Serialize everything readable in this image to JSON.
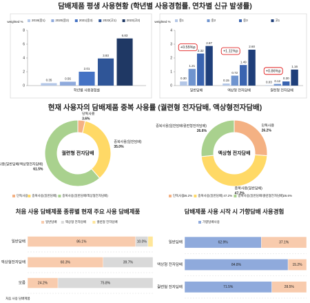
{
  "headings": [
    "담배제품 평생 사용현황 (학년별 사용경험률, 연차별 신규 발생률)",
    "현재 사용자의 담배제품 중복 사용률 (궐련형 전자담배, 액상형전자담배)",
    "처음 사용 담배제품 종류별 현재 주요 사용 담배제품",
    "담배제품 사용 시작 시 가향담배 사용경험"
  ],
  "chart_data": [
    {
      "type": "bar",
      "ylabel": "weighted %",
      "categories": [
        "학년별 사용경험률"
      ],
      "ylim": [
        0,
        8
      ],
      "yticks": [
        0,
        2,
        4,
        6,
        8
      ],
      "series": [
        {
          "name": "2019(중1)",
          "color": "#b4c7e7",
          "values": [
            0.35
          ]
        },
        {
          "name": "2020(중2)",
          "color": "#8faadc",
          "values": [
            0.56
          ]
        },
        {
          "name": "2021(중3)",
          "color": "#4472c4",
          "values": [
            2.01
          ]
        },
        {
          "name": "2022(고1)",
          "color": "#2f5597",
          "values": [
            3.93
          ]
        },
        {
          "name": "2023(고2)",
          "color": "#1f3864",
          "values": [
            6.83
          ]
        }
      ]
    },
    {
      "type": "bar",
      "ylabel": "weighted %",
      "categories": [
        "일반담배",
        "액상형 전자담배",
        "궐련형 전자담배"
      ],
      "ylim": [
        0,
        4
      ],
      "yticks": [
        0,
        1,
        2,
        3,
        4
      ],
      "annotations": [
        "+0.55%p",
        "+1.11%p",
        "+0.86%p"
      ],
      "series": [
        {
          "name": "중1",
          "color": "#b4c7e7",
          "values": [
            0.3,
            0.15,
            0.03
          ],
          "value_labels": [
            "0.30",
            "0.15",
            "0.03"
          ]
        },
        {
          "name": "중2",
          "color": "#6f94cf",
          "values": [
            1.21,
            0.72,
            0.12
          ],
          "value_labels": [
            "1.21",
            "0.72",
            "0.12"
          ]
        },
        {
          "name": "중3",
          "color": "#3a64b0",
          "values": [
            2.32,
            1.49,
            0.3
          ],
          "value_labels": [
            "2.32",
            "1.49",
            "0.30"
          ]
        },
        {
          "name": "고1",
          "color": "#1f3f7a",
          "values": [
            2.87,
            2.6,
            1.16
          ],
          "value_labels": [
            "2.87",
            "2.60",
            "1.16"
          ]
        }
      ]
    },
    {
      "type": "pie",
      "center_label": "궐련형 전자담배",
      "categories": [
        "단독사용",
        "중복사용(일반담배)",
        "중복사용(일반담배/액상형전자담배)"
      ],
      "values": [
        3.6,
        35.0,
        61.5
      ],
      "value_labels": [
        "3.6%",
        "35.0%",
        "61.5%"
      ],
      "colors": [
        "#f4b183",
        "#ffd966",
        "#a9d18e"
      ],
      "legend_shows_values": false
    },
    {
      "type": "pie",
      "center_label": "액상형 전자담배",
      "categories": [
        "단독사용",
        "중복사용(일반담배)",
        "중복사용(일반담배/궐련형전자담배)"
      ],
      "values": [
        26.2,
        47.2,
        26.6
      ],
      "value_labels": [
        "26.2%",
        "47.2%",
        "26.6%"
      ],
      "colors": [
        "#f4b183",
        "#ffd966",
        "#a9d18e"
      ],
      "legend_shows_values": true
    },
    {
      "type": "hbar",
      "xlabel": "처음 사용 담배제품",
      "categories": [
        "일반담배",
        "액상형전자담배",
        "모름"
      ],
      "xlim": [
        0,
        100
      ],
      "series": [
        {
          "name": "일반담배",
          "color": "#f8cbad",
          "values": [
            86.1,
            60.3,
            24.2
          ],
          "value_labels": [
            "86.1%",
            "60.3%",
            "24.2%"
          ]
        },
        {
          "name": "액상형 전자담배",
          "color": "#d9d9d9",
          "values": [
            10.0,
            39.7,
            75.8
          ],
          "value_labels": [
            "10.0%",
            "39.7%",
            "75.8%"
          ]
        },
        {
          "name": "궐련형 전자담배",
          "color": "#ffe699",
          "values": [
            3.9,
            0,
            0
          ],
          "value_labels": [
            null,
            null,
            null
          ]
        }
      ]
    },
    {
      "type": "hbar",
      "categories": [
        "일반담배",
        "액상형 전자담배",
        "궐련형 전자담배"
      ],
      "xlim": [
        0,
        100
      ],
      "series": [
        {
          "name": "가향담배사용",
          "color": "#8faadc",
          "values": [
            62.9,
            84.8,
            71.5
          ],
          "value_labels": [
            "62.9%",
            "84.8%",
            "71.5%"
          ]
        },
        {
          "color": "#f8cbad",
          "values": [
            37.1,
            15.2,
            28.5
          ],
          "value_labels": [
            "37.1%",
            "15.2%",
            "28.5%"
          ]
        }
      ]
    }
  ]
}
